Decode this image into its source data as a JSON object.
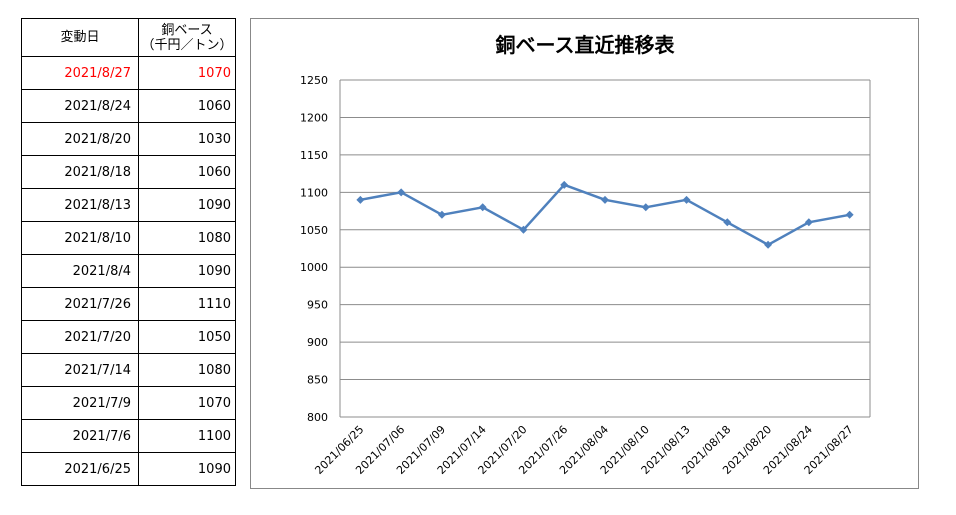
{
  "table": {
    "header": {
      "date": "変動日",
      "price_line1": "銅ベース",
      "price_line2": "（千円／トン）"
    },
    "rows": [
      {
        "date": "2021/8/27",
        "price": "1070",
        "highlight": true
      },
      {
        "date": "2021/8/24",
        "price": "1060"
      },
      {
        "date": "2021/8/20",
        "price": "1030"
      },
      {
        "date": "2021/8/18",
        "price": "1060"
      },
      {
        "date": "2021/8/13",
        "price": "1090"
      },
      {
        "date": "2021/8/10",
        "price": "1080"
      },
      {
        "date": "2021/8/4",
        "price": "1090"
      },
      {
        "date": "2021/7/26",
        "price": "1110"
      },
      {
        "date": "2021/7/20",
        "price": "1050"
      },
      {
        "date": "2021/7/14",
        "price": "1080"
      },
      {
        "date": "2021/7/9",
        "price": "1070"
      },
      {
        "date": "2021/7/6",
        "price": "1100"
      },
      {
        "date": "2021/6/25",
        "price": "1090"
      }
    ]
  },
  "chart_data": {
    "type": "line",
    "title": "銅ベース直近推移表",
    "xlabel": "",
    "ylabel": "",
    "categories": [
      "2021/06/25",
      "2021/07/06",
      "2021/07/09",
      "2021/07/14",
      "2021/07/20",
      "2021/07/26",
      "2021/08/04",
      "2021/08/10",
      "2021/08/13",
      "2021/08/18",
      "2021/08/20",
      "2021/08/24",
      "2021/08/27"
    ],
    "series": [
      {
        "values": [
          1090,
          1100,
          1070,
          1080,
          1050,
          1110,
          1090,
          1080,
          1090,
          1060,
          1030,
          1060,
          1070
        ]
      }
    ],
    "ylim": [
      800,
      1250
    ],
    "yticks": [
      800,
      850,
      900,
      950,
      1000,
      1050,
      1100,
      1150,
      1200,
      1250
    ],
    "grid": true,
    "legend": "none",
    "line_color": "#4f81bd"
  }
}
